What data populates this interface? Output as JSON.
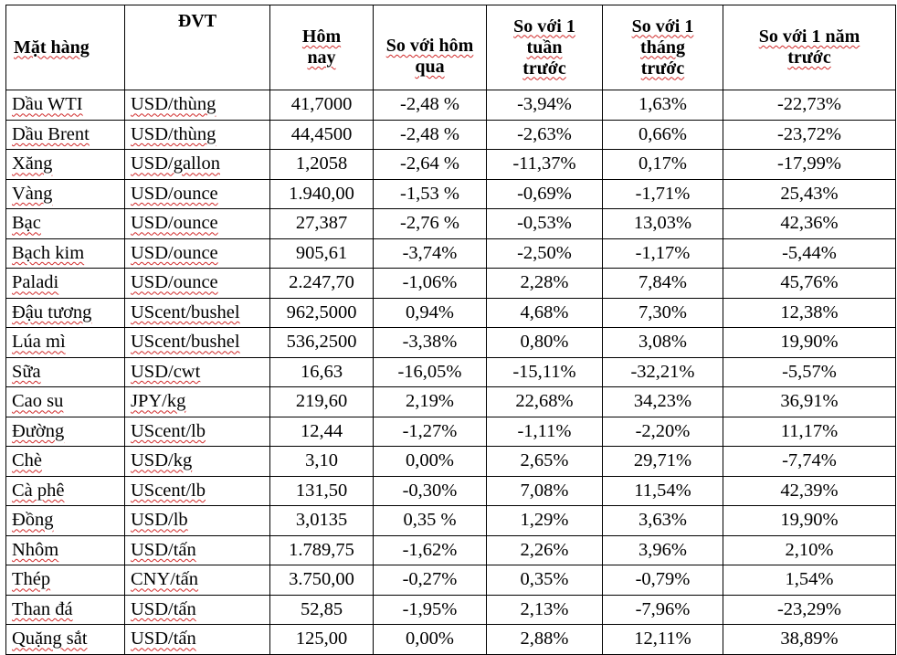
{
  "headers": [
    {
      "key": "mat_hang",
      "label": "Mặt hàng"
    },
    {
      "key": "dvt",
      "label": "ĐVT"
    },
    {
      "key": "hom_nay",
      "label": "Hôm nay"
    },
    {
      "key": "hom_qua",
      "label": "So với hôm qua"
    },
    {
      "key": "tuan",
      "label": "So với 1 tuần trước"
    },
    {
      "key": "thang",
      "label": "So với 1 tháng trước"
    },
    {
      "key": "nam",
      "label": "So với 1 năm trước"
    }
  ],
  "rows": [
    [
      "Dầu WTI",
      "USD/thùng",
      "41,7000",
      "-2,48 %",
      "-3,94%",
      "1,63%",
      "-22,73%"
    ],
    [
      "Dầu Brent",
      "USD/thùng",
      "44,4500",
      "-2,48 %",
      "-2,63%",
      "0,66%",
      "-23,72%"
    ],
    [
      "Xăng",
      "USD/gallon",
      "1,2058",
      "-2,64 %",
      "-11,37%",
      "0,17%",
      "-17,99%"
    ],
    [
      "Vàng",
      "USD/ounce",
      "1.940,00",
      "-1,53 %",
      "-0,69%",
      "-1,71%",
      "25,43%"
    ],
    [
      "Bạc",
      "USD/ounce",
      "27,387",
      "-2,76 %",
      "-0,53%",
      "13,03%",
      "42,36%"
    ],
    [
      "Bạch kim",
      "USD/ounce",
      "905,61",
      "-3,74%",
      "-2,50%",
      "-1,17%",
      "-5,44%"
    ],
    [
      "Paladi",
      "USD/ounce",
      "2.247,70",
      "-1,06%",
      "2,28%",
      "7,84%",
      "45,76%"
    ],
    [
      "Đậu tương",
      "UScent/bushel",
      "962,5000",
      "0,94%",
      "4,68%",
      "7,30%",
      "12,38%"
    ],
    [
      "Lúa mì",
      "UScent/bushel",
      "536,2500",
      "-3,38%",
      "0,80%",
      "3,08%",
      "19,90%"
    ],
    [
      "Sữa",
      "USD/cwt",
      "16,63",
      "-16,05%",
      "-15,11%",
      "-32,21%",
      "-5,57%"
    ],
    [
      "Cao su",
      "JPY/kg",
      "219,60",
      "2,19%",
      "22,68%",
      "34,23%",
      "36,91%"
    ],
    [
      "Đường",
      "UScent/lb",
      "12,44",
      "-1,27%",
      "-1,11%",
      "-2,20%",
      "11,17%"
    ],
    [
      "Chè",
      "USD/kg",
      "3,10",
      "0,00%",
      "2,65%",
      "29,71%",
      "-7,74%"
    ],
    [
      "Cà phê",
      "UScent/lb",
      "131,50",
      "-0,30%",
      "7,08%",
      "11,54%",
      "42,39%"
    ],
    [
      "Đồng",
      "USD/lb",
      "3,0135",
      "0,35 %",
      "1,29%",
      "3,63%",
      "19,90%"
    ],
    [
      "Nhôm",
      "USD/tấn",
      "1.789,75",
      "-1,62%",
      "2,26%",
      "3,96%",
      "2,10%"
    ],
    [
      "Thép",
      "CNY/tấn",
      "3.750,00",
      "-0,27%",
      "0,35%",
      "-0,79%",
      "1,54%"
    ],
    [
      "Than đá",
      "USD/tấn",
      "52,85",
      "-1,95%",
      "2,13%",
      "-7,96%",
      "-23,29%"
    ],
    [
      "Quặng sắt",
      "USD/tấn",
      "125,00",
      "0,00%",
      "2,88%",
      "12,11%",
      "38,89%"
    ]
  ]
}
